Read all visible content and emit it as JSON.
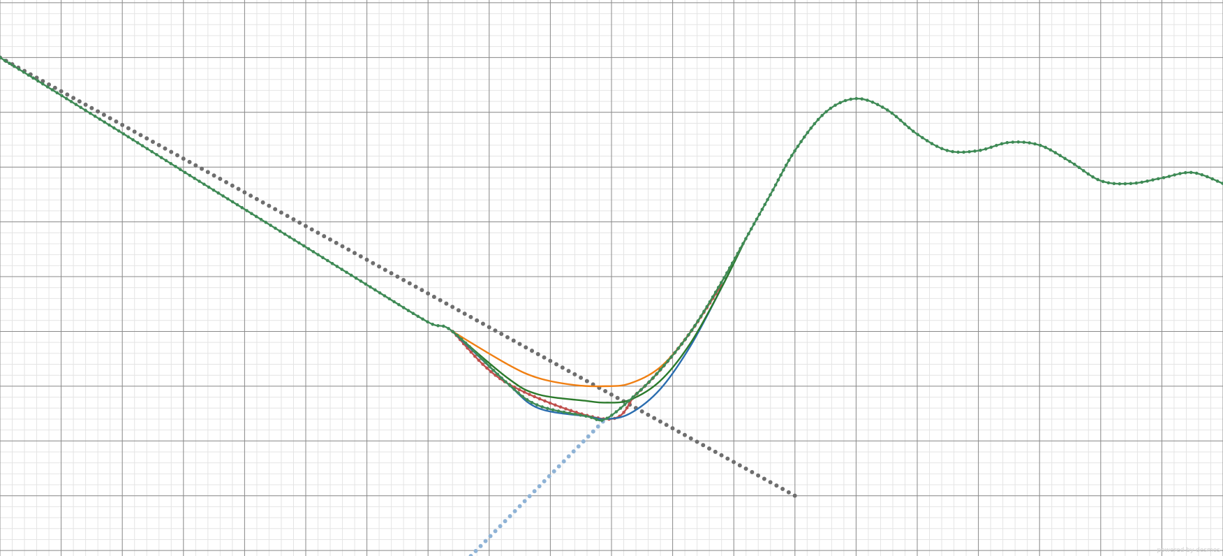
{
  "chart_data": {
    "type": "line",
    "title": "",
    "xlabel": "",
    "ylabel": "",
    "xlim": [
      -10,
      10
    ],
    "ylim": [
      -9.1,
      1.05
    ],
    "grid": {
      "major": true,
      "minor": true,
      "major_step": 1,
      "minor_step": 0.2
    },
    "legend": "none",
    "series": [
      {
        "style": "dotted",
        "color": "#6e6e6e",
        "x": [
          -10,
          3
        ],
        "y": [
          0,
          -8
        ]
      },
      {
        "style": "dotted",
        "color": "#8fb3d6",
        "x": [
          -2.3,
          -0.1
        ],
        "y": [
          -9.1,
          -6.6
        ]
      },
      {
        "style": "dotted-line",
        "color": "#c0504d",
        "x": [
          -2.6,
          -1.7,
          -0.1,
          0.4,
          0.8,
          1.3,
          1.8
        ],
        "y": [
          -5.0,
          -5.95,
          -6.6,
          -6.15,
          -5.7,
          -5.0,
          -4.15
        ]
      },
      {
        "style": "solid",
        "color": "#2a6db0",
        "x": [
          -2.6,
          -1.7,
          -1.2,
          -0.4,
          -0.1,
          0.3,
          0.8,
          1.3,
          1.8,
          2.2
        ],
        "y": [
          -5.0,
          -5.95,
          -6.4,
          -6.55,
          -6.6,
          -6.5,
          -6.05,
          -5.25,
          -4.2,
          -3.3
        ]
      },
      {
        "style": "solid",
        "color": "#2b7a2b",
        "x": [
          -2.6,
          -1.7,
          -1.2,
          -0.4,
          -0.1,
          0.3,
          0.8,
          1.3,
          1.8,
          2.2
        ],
        "y": [
          -5.0,
          -5.85,
          -6.15,
          -6.27,
          -6.3,
          -6.25,
          -5.9,
          -5.2,
          -4.2,
          -3.3
        ]
      },
      {
        "style": "solid",
        "color": "#f07f12",
        "x": [
          -2.6,
          -1.7,
          -1.2,
          -0.6,
          -0.1,
          0.3,
          0.8,
          1.3,
          1.8,
          2.2
        ],
        "y": [
          -5.0,
          -5.6,
          -5.85,
          -5.98,
          -6.0,
          -5.95,
          -5.65,
          -5.0,
          -4.1,
          -3.3
        ]
      },
      {
        "style": "dotted-line",
        "color": "#3e8a55",
        "x": [
          -10,
          -9,
          -8,
          -7,
          -6,
          -5,
          -4,
          -3,
          -2.6,
          -1.7,
          -1.2,
          -0.4,
          -0.1,
          0.4,
          0.8,
          1.3,
          1.8,
          2.2,
          2.6,
          3.0,
          3.5,
          4.0,
          4.5,
          5.0,
          5.5,
          6.0,
          6.5,
          7.0,
          7.5,
          8.0,
          8.5,
          9.0,
          9.5,
          10.0
        ],
        "y": [
          0.0,
          -0.69,
          -1.38,
          -2.08,
          -2.77,
          -3.46,
          -4.15,
          -4.83,
          -5.0,
          -5.95,
          -6.35,
          -6.55,
          -6.6,
          -6.15,
          -5.7,
          -5.0,
          -4.1,
          -3.3,
          -2.5,
          -1.7,
          -1.0,
          -0.75,
          -0.95,
          -1.4,
          -1.7,
          -1.7,
          -1.55,
          -1.6,
          -1.9,
          -2.25,
          -2.3,
          -2.2,
          -2.1,
          -2.3
        ]
      }
    ]
  },
  "watermark": "powered by desmos"
}
